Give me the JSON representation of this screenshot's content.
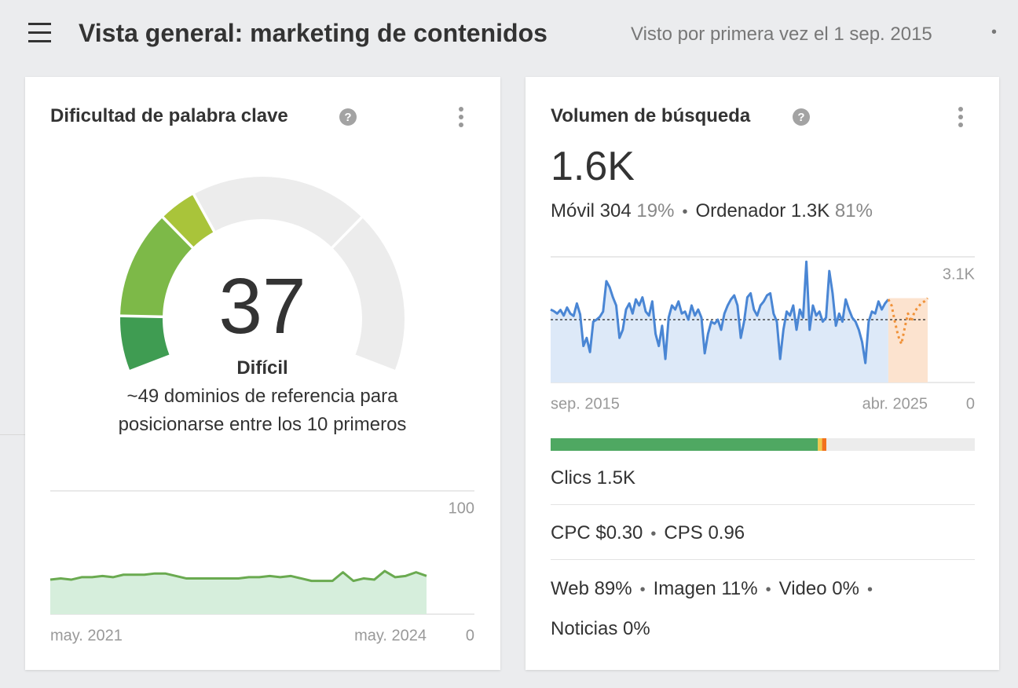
{
  "header": {
    "title": "Vista general: marketing de contenidos",
    "first_seen": "Visto por primera vez el 1 sep. 2015"
  },
  "difficulty_card": {
    "title": "Dificultad de palabra clave",
    "help": "?",
    "gauge": {
      "value": 37,
      "range": [
        0,
        100
      ],
      "segment_bounds": [
        10,
        30,
        70
      ],
      "colors": [
        "#3f9c52",
        "#7db948",
        "#a9c43a"
      ],
      "track_color": "#ececec"
    },
    "level": "Difícil",
    "description": "~49 dominios de referencia para posicionarse entre los 10 primeros"
  },
  "volume_card": {
    "title": "Volumen de búsqueda",
    "help": "?",
    "total": "1.6K",
    "breakdown": [
      {
        "label": "Móvil 304",
        "share": "19%"
      },
      {
        "label": "Ordenador 1.3K",
        "share": "81%"
      }
    ],
    "clicks_bar": {
      "lim": [
        0,
        100
      ],
      "track_color": "#ececec",
      "segments": [
        {
          "color": "#4fa862",
          "value": 63
        },
        {
          "color": "#f2c94c",
          "value": 1
        },
        {
          "color": "#f2711c",
          "value": 1
        }
      ]
    },
    "clicks": "Clics 1.5K",
    "metrics": [
      "CPC $0.30",
      "CPS 0.96"
    ],
    "serp_features": [
      "Web 89%",
      "Imagen 11%",
      "Video 0%",
      "Noticias 0%"
    ]
  },
  "chart_data": [
    {
      "type": "area",
      "categories": [
        "may. 2021",
        null,
        null,
        null,
        null,
        null,
        null,
        null,
        null,
        null,
        null,
        null,
        null,
        null,
        null,
        null,
        null,
        null,
        null,
        null,
        null,
        null,
        null,
        null,
        null,
        null,
        null,
        null,
        null,
        null,
        null,
        null,
        null,
        null,
        null,
        null,
        "may. 2024"
      ],
      "series": [
        {
          "color": "#6aaa50",
          "fill": "#d6eedc",
          "values": [
            28,
            29,
            28,
            30,
            30,
            31,
            30,
            32,
            32,
            32,
            33,
            33,
            31,
            29,
            29,
            29,
            29,
            29,
            29,
            30,
            30,
            31,
            30,
            31,
            29,
            27,
            27,
            27,
            34,
            27,
            29,
            28,
            35,
            30,
            31,
            34,
            31
          ]
        }
      ],
      "ylim": [
        0,
        100
      ],
      "yticks": [
        0,
        100
      ],
      "grid": true
    },
    {
      "type": "area",
      "categories": [
        "sep. 2015",
        null,
        null,
        null,
        null,
        null,
        null,
        null,
        null,
        null,
        null,
        null,
        null,
        null,
        null,
        null,
        null,
        null,
        null,
        null,
        null,
        null,
        null,
        null,
        null,
        null,
        null,
        null,
        null,
        null,
        null,
        null,
        null,
        null,
        null,
        null,
        null,
        null,
        null,
        null,
        null,
        null,
        null,
        null,
        null,
        null,
        null,
        null,
        null,
        null,
        null,
        null,
        null,
        null,
        null,
        null,
        null,
        null,
        null,
        null,
        null,
        null,
        null,
        null,
        null,
        null,
        null,
        null,
        null,
        null,
        null,
        null,
        null,
        null,
        null,
        null,
        null,
        null,
        null,
        null,
        null,
        null,
        null,
        null,
        null,
        null,
        null,
        null,
        null,
        null,
        null,
        null,
        null,
        null,
        null,
        null,
        null,
        null,
        null,
        null,
        null,
        null,
        null,
        null,
        null,
        null,
        null,
        null,
        null,
        null,
        null,
        null,
        null,
        null,
        null,
        "abr. 2025"
      ],
      "series": [
        {
          "color": "#4a86d4",
          "fill": "#dde9f8",
          "dashed": false,
          "values": [
            1800,
            1760,
            1700,
            1790,
            1650,
            1850,
            1700,
            1640,
            1950,
            1680,
            900,
            1100,
            750,
            1500,
            1550,
            1620,
            1750,
            2500,
            2350,
            2100,
            1900,
            1100,
            1300,
            1800,
            1950,
            1700,
            2050,
            1900,
            2100,
            1750,
            1650,
            2000,
            1200,
            900,
            1400,
            580,
            1600,
            1900,
            1800,
            2000,
            1700,
            1750,
            1550,
            1900,
            1650,
            1800,
            1600,
            720,
            1200,
            1500,
            1450,
            1550,
            1300,
            1700,
            1900,
            2050,
            2150,
            1900,
            1100,
            1500,
            2100,
            2200,
            1800,
            1650,
            1900,
            2000,
            2150,
            2200,
            1700,
            1500,
            580,
            1300,
            1750,
            1650,
            1900,
            1300,
            1800,
            1600,
            2980,
            1300,
            1900,
            1650,
            1750,
            1500,
            1600,
            2750,
            2200,
            1400,
            1700,
            1500,
            2050,
            1800,
            1600,
            1500,
            1300,
            1000,
            480,
            1500,
            1750,
            1700,
            2000,
            1800,
            1950,
            2050,
            null,
            null,
            null,
            null,
            null,
            null,
            null,
            null,
            null,
            null,
            null,
            null
          ]
        },
        {
          "color": "#f0923a",
          "fill": "#fce3cf",
          "dashed": true,
          "values": [
            null,
            null,
            null,
            null,
            null,
            null,
            null,
            null,
            null,
            null,
            null,
            null,
            null,
            null,
            null,
            null,
            null,
            null,
            null,
            null,
            null,
            null,
            null,
            null,
            null,
            null,
            null,
            null,
            null,
            null,
            null,
            null,
            null,
            null,
            null,
            null,
            null,
            null,
            null,
            null,
            null,
            null,
            null,
            null,
            null,
            null,
            null,
            null,
            null,
            null,
            null,
            null,
            null,
            null,
            null,
            null,
            null,
            null,
            null,
            null,
            null,
            null,
            null,
            null,
            null,
            null,
            null,
            null,
            null,
            null,
            null,
            null,
            null,
            null,
            null,
            null,
            null,
            null,
            null,
            null,
            null,
            null,
            null,
            null,
            null,
            null,
            null,
            null,
            null,
            null,
            null,
            null,
            null,
            null,
            null,
            null,
            null,
            null,
            null,
            null,
            null,
            null,
            null,
            2050,
            1900,
            1500,
            1150,
            950,
            1350,
            1700,
            1500,
            1750,
            1850,
            1950,
            2000,
            2080
          ]
        }
      ],
      "reference_line": 1550,
      "ylim": [
        0,
        3100
      ],
      "yticks": [
        0,
        {
          "value": 3100,
          "label": "3.1K"
        }
      ],
      "grid": true
    }
  ]
}
